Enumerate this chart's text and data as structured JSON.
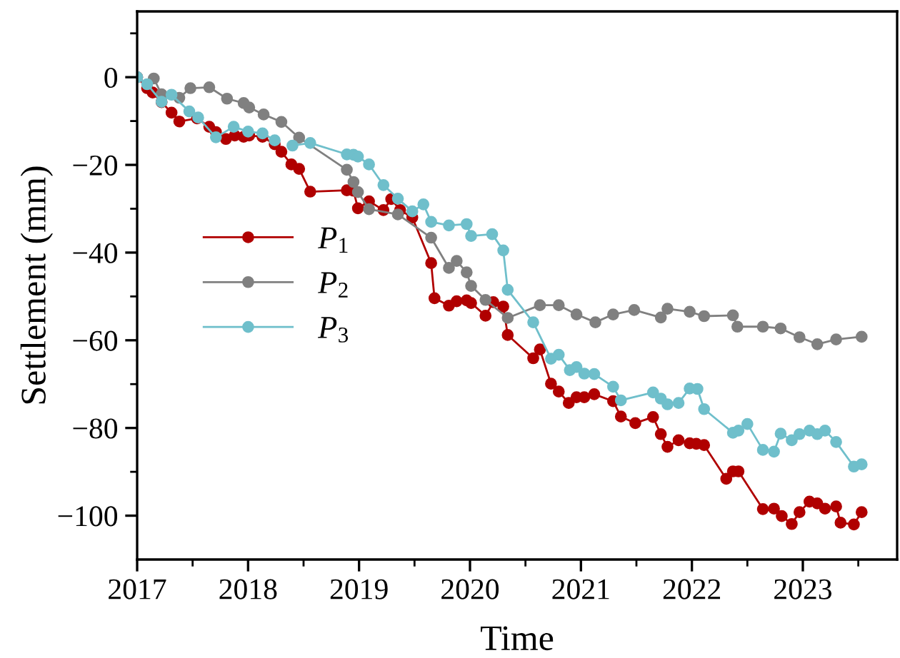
{
  "chart_data": {
    "type": "line",
    "xlabel": "Time",
    "ylabel": "Settlement (mm)",
    "xlim": [
      2017,
      2023.85
    ],
    "ylim": [
      -110,
      15
    ],
    "xticks": [
      2017,
      {
        "value": 2017.5,
        "label": null
      },
      2018,
      {
        "value": 2018.5,
        "label": null
      },
      2019,
      {
        "value": 2019.5,
        "label": null
      },
      2020,
      {
        "value": 2020.5,
        "label": null
      },
      2021,
      {
        "value": 2021.5,
        "label": null
      },
      2022,
      {
        "value": 2022.5,
        "label": null
      },
      2023,
      {
        "value": 2023.5,
        "label": null
      }
    ],
    "yticks": [
      {
        "value": 10,
        "label": null
      },
      0,
      {
        "value": -10,
        "label": null
      },
      {
        "value": -20,
        "label": "−20"
      },
      {
        "value": -30,
        "label": null
      },
      {
        "value": -40,
        "label": "−40"
      },
      {
        "value": -50,
        "label": null
      },
      {
        "value": -60,
        "label": "−60"
      },
      {
        "value": -70,
        "label": null
      },
      {
        "value": -80,
        "label": "−80"
      },
      {
        "value": -90,
        "label": null
      },
      {
        "value": -100,
        "label": "−100"
      }
    ],
    "grid": false,
    "legend": "left",
    "marker": "circle",
    "line_style": "solid",
    "series": [
      {
        "name": "P$_{1}$",
        "color": "#b00000",
        "x": [
          2017.0,
          2017.09,
          2017.14,
          2017.22,
          2017.31,
          2017.38,
          2017.54,
          2017.65,
          2017.71,
          2017.8,
          2017.88,
          2017.96,
          2018.01,
          2018.13,
          2018.24,
          2018.3,
          2018.39,
          2018.46,
          2018.56,
          2018.89,
          2018.95,
          2018.99,
          2019.09,
          2019.22,
          2019.29,
          2019.37,
          2019.48,
          2019.65,
          2019.68,
          2019.81,
          2019.88,
          2019.97,
          2020.01,
          2020.14,
          2020.21,
          2020.3,
          2020.34,
          2020.57,
          2020.63,
          2020.73,
          2020.8,
          2020.89,
          2020.96,
          2021.03,
          2021.12,
          2021.29,
          2021.36,
          2021.49,
          2021.65,
          2021.72,
          2021.78,
          2021.88,
          2021.98,
          2022.04,
          2022.11,
          2022.31,
          2022.37,
          2022.42,
          2022.64,
          2022.74,
          2022.81,
          2022.9,
          2022.97,
          2023.06,
          2023.13,
          2023.2,
          2023.3,
          2023.34,
          2023.46,
          2023.53
        ],
        "values": [
          0,
          -2.5,
          -3.5,
          -5.7,
          -8.1,
          -10.1,
          -9.4,
          -11.3,
          -12.5,
          -14.1,
          -13.3,
          -13.6,
          -13.3,
          -13.6,
          -15.3,
          -17.0,
          -19.9,
          -20.9,
          -26.1,
          -25.8,
          -25.9,
          -29.9,
          -28.3,
          -30.3,
          -27.8,
          -30.3,
          -32.0,
          -42.4,
          -50.4,
          -52.1,
          -51.1,
          -50.9,
          -51.5,
          -54.4,
          -51.3,
          -52.3,
          -58.8,
          -64.1,
          -62.1,
          -69.9,
          -71.7,
          -74.3,
          -73.0,
          -73.0,
          -72.3,
          -73.9,
          -77.4,
          -78.9,
          -77.5,
          -81.4,
          -84.3,
          -82.8,
          -83.5,
          -83.6,
          -83.9,
          -91.6,
          -89.9,
          -89.9,
          -98.5,
          -98.4,
          -100.1,
          -101.9,
          -99.2,
          -96.8,
          -97.2,
          -98.4,
          -97.9,
          -101.6,
          -102.0,
          -99.2
        ]
      },
      {
        "name": "P$_{2}$",
        "color": "#808080",
        "x": [
          2017.0,
          2017.09,
          2017.15,
          2017.22,
          2017.38,
          2017.48,
          2017.65,
          2017.81,
          2017.96,
          2018.01,
          2018.14,
          2018.3,
          2018.46,
          2018.89,
          2018.95,
          2018.99,
          2019.09,
          2019.35,
          2019.65,
          2019.81,
          2019.88,
          2019.97,
          2020.01,
          2020.14,
          2020.34,
          2020.63,
          2020.8,
          2020.96,
          2021.13,
          2021.29,
          2021.48,
          2021.72,
          2021.78,
          2021.98,
          2022.11,
          2022.37,
          2022.41,
          2022.64,
          2022.8,
          2022.97,
          2023.13,
          2023.3,
          2023.53
        ],
        "values": [
          0,
          null,
          -0.3,
          -3.9,
          -4.7,
          -2.5,
          -2.3,
          -4.9,
          -5.9,
          -6.9,
          -8.5,
          -10.2,
          -13.8,
          -21.1,
          -23.9,
          -26.2,
          -30.1,
          -31.3,
          -36.6,
          -43.5,
          -41.9,
          -44.5,
          -47.6,
          -50.8,
          -54.9,
          -52.0,
          -52.0,
          -54.1,
          -55.9,
          -54.1,
          -53.1,
          -54.8,
          -52.8,
          -53.5,
          -54.5,
          -54.3,
          -56.9,
          -56.9,
          -57.3,
          -59.3,
          -60.9,
          -59.8,
          -59.2
        ]
      },
      {
        "name": "P$_{3}$",
        "color": "#6fbfcb",
        "x": [
          2017.0,
          2017.09,
          2017.22,
          2017.31,
          2017.47,
          2017.55,
          2017.71,
          2017.87,
          2018.0,
          2018.13,
          2018.24,
          2018.3,
          2018.4,
          2018.56,
          2018.89,
          2018.95,
          2018.99,
          2019.09,
          2019.22,
          2019.35,
          2019.48,
          2019.58,
          2019.65,
          2019.81,
          2019.97,
          2020.01,
          2020.2,
          2020.3,
          2020.34,
          2020.57,
          2020.73,
          2020.8,
          2020.9,
          2020.96,
          2021.03,
          2021.12,
          2021.29,
          2021.36,
          2021.65,
          2021.72,
          2021.78,
          2021.88,
          2021.98,
          2022.05,
          2022.11,
          2022.37,
          2022.42,
          2022.5,
          2022.64,
          2022.74,
          2022.8,
          2022.9,
          2022.97,
          2023.06,
          2023.13,
          2023.2,
          2023.3,
          2023.46,
          2023.53
        ],
        "values": [
          0,
          -1.6,
          -5.6,
          -4.0,
          -7.8,
          -9.2,
          -13.7,
          -11.3,
          -12.4,
          -12.8,
          -14.4,
          null,
          -15.6,
          -15.0,
          -17.6,
          -17.7,
          -18.1,
          -19.9,
          -24.6,
          -27.7,
          -30.6,
          -29.0,
          -33.0,
          -33.8,
          -33.5,
          -36.2,
          -35.8,
          -39.5,
          -48.5,
          -55.9,
          -64.2,
          -63.3,
          -66.8,
          -66.1,
          -67.6,
          -67.7,
          -70.6,
          -73.7,
          -71.9,
          -73.3,
          -74.6,
          -74.3,
          -71.0,
          -71.1,
          -75.7,
          -81.1,
          -80.6,
          -79.1,
          -85.0,
          -85.4,
          -81.3,
          -82.8,
          -81.4,
          -80.6,
          -81.4,
          -80.6,
          -83.2,
          -88.8,
          -88.3
        ]
      }
    ]
  }
}
